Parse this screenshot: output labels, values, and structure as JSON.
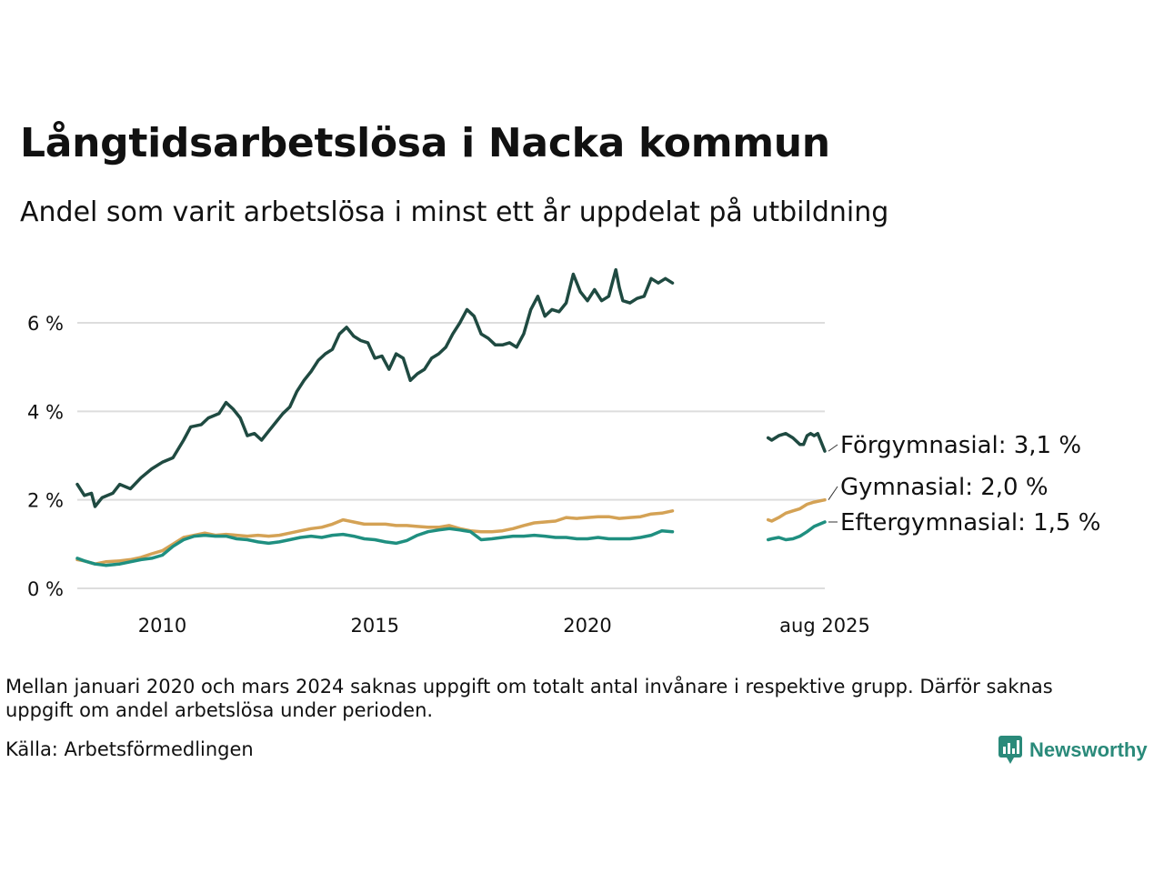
{
  "title": "Långtidsarbetslösa i Nacka kommun",
  "subtitle": "Andel som varit arbetslösa i minst ett år uppdelat på utbildning",
  "note": "Mellan januari 2020 och mars 2024 saknas uppgift om totalt antal invånare i respektive grupp. Därför saknas uppgift om andel arbetslösa under perioden.",
  "source": "Källa: Arbetsförmedlingen",
  "brand": {
    "name": "Newsworthy",
    "color": "#2a8a7a",
    "icon": "bar-chart-speech-bubble-icon"
  },
  "colors": {
    "grid": "#dddddd",
    "text": "#111111"
  },
  "chart_data": {
    "type": "line",
    "grid": "horizontal",
    "legend": "inline-labels-right",
    "ylim": [
      0,
      7.2
    ],
    "yticks": [
      {
        "value": 0,
        "label": "0 %"
      },
      {
        "value": 2,
        "label": "2 %"
      },
      {
        "value": 4,
        "label": "4 %"
      },
      {
        "value": 6,
        "label": "6 %"
      }
    ],
    "xlim": [
      "2008-01",
      "2025-08"
    ],
    "xticks": [
      {
        "value": "2010-01",
        "label": "2010"
      },
      {
        "value": "2015-01",
        "label": "2015"
      },
      {
        "value": "2020-01",
        "label": "2020"
      },
      {
        "value": "2025-08",
        "label": "aug 2025"
      }
    ],
    "series": [
      {
        "name": "Förgymnasial",
        "label": "Förgymnasial: 3,1 %",
        "color": "#1f4a41",
        "points": [
          [
            "2008-01",
            2.35
          ],
          [
            "2008-03",
            2.1
          ],
          [
            "2008-05",
            2.15
          ],
          [
            "2008-06",
            1.85
          ],
          [
            "2008-08",
            2.05
          ],
          [
            "2008-11",
            2.15
          ],
          [
            "2009-01",
            2.35
          ],
          [
            "2009-04",
            2.25
          ],
          [
            "2009-07",
            2.5
          ],
          [
            "2009-10",
            2.7
          ],
          [
            "2010-01",
            2.85
          ],
          [
            "2010-04",
            2.95
          ],
          [
            "2010-07",
            3.35
          ],
          [
            "2010-09",
            3.65
          ],
          [
            "2010-12",
            3.7
          ],
          [
            "2011-02",
            3.85
          ],
          [
            "2011-05",
            3.95
          ],
          [
            "2011-07",
            4.2
          ],
          [
            "2011-09",
            4.05
          ],
          [
            "2011-11",
            3.85
          ],
          [
            "2012-01",
            3.45
          ],
          [
            "2012-03",
            3.5
          ],
          [
            "2012-05",
            3.35
          ],
          [
            "2012-07",
            3.55
          ],
          [
            "2012-09",
            3.75
          ],
          [
            "2012-11",
            3.95
          ],
          [
            "2013-01",
            4.1
          ],
          [
            "2013-03",
            4.45
          ],
          [
            "2013-05",
            4.7
          ],
          [
            "2013-07",
            4.9
          ],
          [
            "2013-09",
            5.15
          ],
          [
            "2013-11",
            5.3
          ],
          [
            "2014-01",
            5.4
          ],
          [
            "2014-03",
            5.75
          ],
          [
            "2014-05",
            5.9
          ],
          [
            "2014-07",
            5.7
          ],
          [
            "2014-09",
            5.6
          ],
          [
            "2014-11",
            5.55
          ],
          [
            "2015-01",
            5.2
          ],
          [
            "2015-03",
            5.25
          ],
          [
            "2015-05",
            4.95
          ],
          [
            "2015-07",
            5.3
          ],
          [
            "2015-09",
            5.2
          ],
          [
            "2015-11",
            4.7
          ],
          [
            "2016-01",
            4.85
          ],
          [
            "2016-03",
            4.95
          ],
          [
            "2016-05",
            5.2
          ],
          [
            "2016-07",
            5.3
          ],
          [
            "2016-09",
            5.45
          ],
          [
            "2016-11",
            5.75
          ],
          [
            "2017-01",
            6.0
          ],
          [
            "2017-03",
            6.3
          ],
          [
            "2017-05",
            6.15
          ],
          [
            "2017-07",
            5.75
          ],
          [
            "2017-09",
            5.65
          ],
          [
            "2017-11",
            5.5
          ],
          [
            "2018-01",
            5.5
          ],
          [
            "2018-03",
            5.55
          ],
          [
            "2018-05",
            5.45
          ],
          [
            "2018-07",
            5.75
          ],
          [
            "2018-09",
            6.3
          ],
          [
            "2018-11",
            6.6
          ],
          [
            "2019-01",
            6.15
          ],
          [
            "2019-03",
            6.3
          ],
          [
            "2019-05",
            6.25
          ],
          [
            "2019-07",
            6.45
          ],
          [
            "2019-09",
            7.1
          ],
          [
            "2019-11",
            6.7
          ],
          [
            "2020-01",
            6.5
          ],
          [
            "2020-03",
            6.75
          ],
          [
            "2020-05",
            6.5
          ],
          [
            "2020-07",
            6.6
          ],
          [
            "2020-09",
            7.2
          ],
          [
            "2020-10",
            6.8
          ],
          [
            "2020-11",
            6.5
          ],
          [
            "2021-01",
            6.45
          ],
          [
            "2021-03",
            6.55
          ],
          [
            "2021-05",
            6.6
          ],
          [
            "2021-07",
            7.0
          ],
          [
            "2021-09",
            6.9
          ],
          [
            "2021-11",
            7.0
          ],
          [
            "2022-01",
            6.9
          ],
          null,
          [
            "2024-04",
            3.4
          ],
          [
            "2024-05",
            3.35
          ],
          [
            "2024-07",
            3.45
          ],
          [
            "2024-09",
            3.5
          ],
          [
            "2024-11",
            3.4
          ],
          [
            "2025-01",
            3.25
          ],
          [
            "2025-02",
            3.25
          ],
          [
            "2025-03",
            3.45
          ],
          [
            "2025-04",
            3.5
          ],
          [
            "2025-05",
            3.45
          ],
          [
            "2025-06",
            3.5
          ],
          [
            "2025-07",
            3.3
          ],
          [
            "2025-08",
            3.1
          ]
        ]
      },
      {
        "name": "Gymnasial",
        "label": "Gymnasial: 2,0 %",
        "color": "#d4a255",
        "points": [
          [
            "2008-01",
            0.65
          ],
          [
            "2008-03",
            0.62
          ],
          [
            "2008-06",
            0.55
          ],
          [
            "2008-09",
            0.6
          ],
          [
            "2009-01",
            0.62
          ],
          [
            "2009-04",
            0.65
          ],
          [
            "2009-07",
            0.7
          ],
          [
            "2009-10",
            0.78
          ],
          [
            "2010-01",
            0.85
          ],
          [
            "2010-04",
            1.0
          ],
          [
            "2010-07",
            1.15
          ],
          [
            "2010-10",
            1.2
          ],
          [
            "2011-01",
            1.25
          ],
          [
            "2011-04",
            1.2
          ],
          [
            "2011-07",
            1.22
          ],
          [
            "2011-10",
            1.2
          ],
          [
            "2012-01",
            1.18
          ],
          [
            "2012-04",
            1.2
          ],
          [
            "2012-07",
            1.18
          ],
          [
            "2012-10",
            1.2
          ],
          [
            "2013-01",
            1.25
          ],
          [
            "2013-04",
            1.3
          ],
          [
            "2013-07",
            1.35
          ],
          [
            "2013-10",
            1.38
          ],
          [
            "2014-01",
            1.45
          ],
          [
            "2014-04",
            1.55
          ],
          [
            "2014-07",
            1.5
          ],
          [
            "2014-10",
            1.45
          ],
          [
            "2015-01",
            1.45
          ],
          [
            "2015-04",
            1.45
          ],
          [
            "2015-07",
            1.42
          ],
          [
            "2015-10",
            1.42
          ],
          [
            "2016-01",
            1.4
          ],
          [
            "2016-04",
            1.38
          ],
          [
            "2016-07",
            1.38
          ],
          [
            "2016-10",
            1.42
          ],
          [
            "2017-01",
            1.35
          ],
          [
            "2017-04",
            1.3
          ],
          [
            "2017-07",
            1.28
          ],
          [
            "2017-10",
            1.28
          ],
          [
            "2018-01",
            1.3
          ],
          [
            "2018-04",
            1.35
          ],
          [
            "2018-07",
            1.42
          ],
          [
            "2018-10",
            1.48
          ],
          [
            "2019-01",
            1.5
          ],
          [
            "2019-04",
            1.52
          ],
          [
            "2019-07",
            1.6
          ],
          [
            "2019-10",
            1.58
          ],
          [
            "2020-01",
            1.6
          ],
          [
            "2020-04",
            1.62
          ],
          [
            "2020-07",
            1.62
          ],
          [
            "2020-10",
            1.58
          ],
          [
            "2021-01",
            1.6
          ],
          [
            "2021-04",
            1.62
          ],
          [
            "2021-07",
            1.68
          ],
          [
            "2021-10",
            1.7
          ],
          [
            "2022-01",
            1.75
          ],
          null,
          [
            "2024-04",
            1.55
          ],
          [
            "2024-05",
            1.52
          ],
          [
            "2024-07",
            1.6
          ],
          [
            "2024-09",
            1.7
          ],
          [
            "2024-11",
            1.75
          ],
          [
            "2025-01",
            1.8
          ],
          [
            "2025-03",
            1.9
          ],
          [
            "2025-05",
            1.95
          ],
          [
            "2025-08",
            2.0
          ]
        ]
      },
      {
        "name": "Eftergymnasial",
        "label": "Eftergymnasial: 1,5 %",
        "color": "#1f8f80",
        "points": [
          [
            "2008-01",
            0.68
          ],
          [
            "2008-03",
            0.62
          ],
          [
            "2008-06",
            0.55
          ],
          [
            "2008-09",
            0.52
          ],
          [
            "2009-01",
            0.55
          ],
          [
            "2009-04",
            0.6
          ],
          [
            "2009-07",
            0.65
          ],
          [
            "2009-10",
            0.68
          ],
          [
            "2010-01",
            0.75
          ],
          [
            "2010-04",
            0.95
          ],
          [
            "2010-07",
            1.1
          ],
          [
            "2010-10",
            1.18
          ],
          [
            "2011-01",
            1.2
          ],
          [
            "2011-04",
            1.18
          ],
          [
            "2011-07",
            1.18
          ],
          [
            "2011-10",
            1.12
          ],
          [
            "2012-01",
            1.1
          ],
          [
            "2012-04",
            1.05
          ],
          [
            "2012-07",
            1.02
          ],
          [
            "2012-10",
            1.05
          ],
          [
            "2013-01",
            1.1
          ],
          [
            "2013-04",
            1.15
          ],
          [
            "2013-07",
            1.18
          ],
          [
            "2013-10",
            1.15
          ],
          [
            "2014-01",
            1.2
          ],
          [
            "2014-04",
            1.22
          ],
          [
            "2014-07",
            1.18
          ],
          [
            "2014-10",
            1.12
          ],
          [
            "2015-01",
            1.1
          ],
          [
            "2015-04",
            1.05
          ],
          [
            "2015-07",
            1.02
          ],
          [
            "2015-10",
            1.08
          ],
          [
            "2016-01",
            1.2
          ],
          [
            "2016-04",
            1.28
          ],
          [
            "2016-07",
            1.32
          ],
          [
            "2016-10",
            1.35
          ],
          [
            "2017-01",
            1.32
          ],
          [
            "2017-04",
            1.28
          ],
          [
            "2017-07",
            1.1
          ],
          [
            "2017-10",
            1.12
          ],
          [
            "2018-01",
            1.15
          ],
          [
            "2018-04",
            1.18
          ],
          [
            "2018-07",
            1.18
          ],
          [
            "2018-10",
            1.2
          ],
          [
            "2019-01",
            1.18
          ],
          [
            "2019-04",
            1.15
          ],
          [
            "2019-07",
            1.15
          ],
          [
            "2019-10",
            1.12
          ],
          [
            "2020-01",
            1.12
          ],
          [
            "2020-04",
            1.15
          ],
          [
            "2020-07",
            1.12
          ],
          [
            "2020-10",
            1.12
          ],
          [
            "2021-01",
            1.12
          ],
          [
            "2021-04",
            1.15
          ],
          [
            "2021-07",
            1.2
          ],
          [
            "2021-10",
            1.3
          ],
          [
            "2022-01",
            1.28
          ],
          null,
          [
            "2024-04",
            1.1
          ],
          [
            "2024-05",
            1.12
          ],
          [
            "2024-07",
            1.15
          ],
          [
            "2024-09",
            1.1
          ],
          [
            "2024-11",
            1.12
          ],
          [
            "2025-01",
            1.18
          ],
          [
            "2025-03",
            1.28
          ],
          [
            "2025-05",
            1.4
          ],
          [
            "2025-08",
            1.5
          ]
        ]
      }
    ]
  }
}
